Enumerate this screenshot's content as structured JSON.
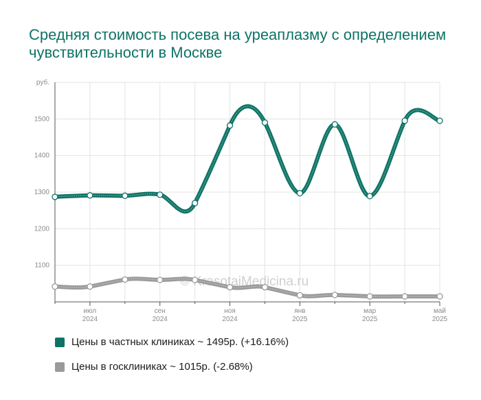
{
  "title": "Средняя стоимость посева на уреаплазму с определением чувствительности в Москве",
  "watermark": "© KrasotaiMedicina.ru",
  "chart_data": {
    "type": "line",
    "y_unit_label": "руб.",
    "y_ticks": [
      1100,
      1200,
      1300,
      1400,
      1500
    ],
    "ylim": [
      1000,
      1600
    ],
    "grid": true,
    "x_ticks": [
      {
        "line1": "июл",
        "line2": "2024"
      },
      {
        "line1": "сен",
        "line2": "2024"
      },
      {
        "line1": "ноя",
        "line2": "2024"
      },
      {
        "line1": "янв",
        "line2": "2025"
      },
      {
        "line1": "мар",
        "line2": "2025"
      },
      {
        "line1": "май",
        "line2": "2025"
      }
    ],
    "series": [
      {
        "name": "Цены в частных клиниках ~ 1495р. (+16.16%)",
        "color": "#0d7366",
        "values": [
          1287,
          1291,
          1290,
          1293,
          1270,
          1482,
          1490,
          1297,
          1485,
          1289,
          1495,
          1495
        ]
      },
      {
        "name": "Цены в госклиниках ~ 1015р. (-2.68%)",
        "color": "#9a9a9a",
        "values": [
          1042,
          1042,
          1061,
          1060,
          1060,
          1040,
          1040,
          1018,
          1019,
          1015,
          1015,
          1015
        ]
      }
    ]
  }
}
